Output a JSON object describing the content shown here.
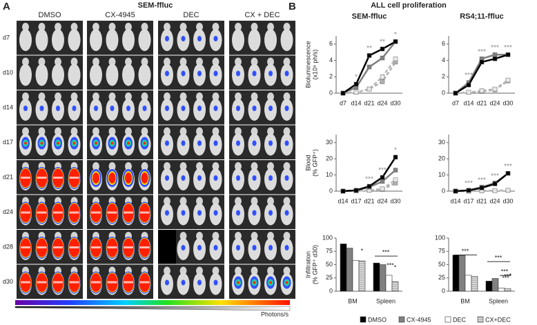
{
  "panel_a": {
    "label": "A",
    "title": "SEM-ffluc",
    "columns": [
      "DMSO",
      "CX-4945",
      "DEC",
      "CX + DEC"
    ],
    "rows": [
      "d7",
      "d10",
      "d14",
      "d17",
      "d21",
      "d24",
      "d28",
      "d30"
    ],
    "colorbar_label": "Photons/s"
  },
  "panel_b": {
    "label": "B",
    "title": "ALL cell proliferation",
    "columns": [
      "SEM-ffluc",
      "RS4;11-ffluc"
    ]
  },
  "legend": [
    {
      "name": "DMSO",
      "color": "#000000",
      "line_style": "solid"
    },
    {
      "name": "CX-4945",
      "color": "#808080",
      "line_style": "solid"
    },
    {
      "name": "DEC",
      "color": "#ffffff",
      "line_style": "dashed"
    },
    {
      "name": "CX+DEC",
      "color": "#b0b0b0",
      "line_style": "dashed"
    }
  ],
  "chart_data": [
    {
      "type": "line",
      "ylabel": [
        "Bioluminescence",
        "(x10⁹ ph/s)"
      ],
      "categories": [
        "d7",
        "d14",
        "d21",
        "d24",
        "d30"
      ],
      "ylim": [
        0,
        7
      ],
      "yticks": [
        0,
        2,
        4,
        6
      ],
      "series": [
        {
          "values": [
            0,
            1.1,
            4.6,
            5.4,
            6.3
          ]
        },
        {
          "values": [
            0,
            0.7,
            3.2,
            4.3,
            6.3
          ]
        },
        {
          "values": [
            0,
            0.1,
            0.5,
            2.0,
            4.2
          ]
        },
        {
          "values": [
            0,
            0.1,
            0.5,
            1.4,
            3.8
          ]
        }
      ],
      "annotations": [
        {
          "text": "*",
          "at": "d14"
        },
        {
          "text": "**",
          "at": "d21"
        },
        {
          "text": "**",
          "at": "d24"
        },
        {
          "text": "*",
          "at": "d30"
        }
      ]
    },
    {
      "type": "line",
      "categories": [
        "d7",
        "d14",
        "d21",
        "d24",
        "d30"
      ],
      "ylim": [
        0,
        7
      ],
      "yticks": [
        0,
        2,
        4,
        6
      ],
      "series": [
        {
          "values": [
            0,
            1.0,
            3.8,
            4.2,
            4.7
          ]
        },
        {
          "values": [
            0,
            1.3,
            4.2,
            4.7,
            4.7
          ]
        },
        {
          "values": [
            0,
            0.1,
            0.3,
            0.5,
            1.6
          ]
        },
        {
          "values": [
            0,
            0.1,
            0.2,
            0.4,
            1.5
          ]
        }
      ],
      "annotations": [
        {
          "text": "***",
          "at": "d14"
        },
        {
          "text": "***",
          "at": "d21"
        },
        {
          "text": "***",
          "at": "d24"
        },
        {
          "text": "***",
          "at": "d30"
        }
      ]
    },
    {
      "type": "line",
      "ylabel": [
        "Blood",
        "(% GFP⁺)"
      ],
      "categories": [
        "d14",
        "d17",
        "d21",
        "d24",
        "d30"
      ],
      "ylim": [
        0,
        35
      ],
      "yticks": [
        0,
        10,
        20,
        30
      ],
      "series": [
        {
          "values": [
            0,
            0.5,
            3,
            8.5,
            21
          ]
        },
        {
          "values": [
            0,
            0.5,
            2.5,
            6,
            13
          ]
        },
        {
          "values": [
            0,
            0.2,
            0.5,
            1.5,
            7
          ]
        },
        {
          "values": [
            0,
            0.2,
            0.5,
            1,
            5
          ]
        }
      ],
      "annotations": [
        {
          "text": "***",
          "at": "d21"
        },
        {
          "text": "***",
          "at": "d24"
        },
        {
          "text": "*",
          "at": "d30"
        }
      ]
    },
    {
      "type": "line",
      "categories": [
        "d14",
        "d17",
        "d21",
        "d24",
        "d30"
      ],
      "ylim": [
        0,
        35
      ],
      "yticks": [
        0,
        10,
        20,
        30
      ],
      "series": [
        {
          "values": [
            0,
            0.5,
            2,
            4.5,
            11
          ]
        },
        {
          "values": [
            0,
            0.5,
            2.5,
            5,
            11
          ]
        },
        {
          "values": [
            0,
            0,
            0.2,
            0.3,
            0.5
          ]
        },
        {
          "values": [
            0,
            0,
            0.2,
            0.3,
            0.5
          ]
        }
      ],
      "annotations": [
        {
          "text": "***",
          "at": "d17"
        },
        {
          "text": "***",
          "at": "d21"
        },
        {
          "text": "***",
          "at": "d24"
        },
        {
          "text": "***",
          "at": "d30"
        }
      ]
    },
    {
      "type": "bar",
      "ylabel": [
        "Infiltration",
        "(% GFP⁺ d30)"
      ],
      "categories": [
        "BM",
        "Spleen"
      ],
      "ylim": [
        0,
        100
      ],
      "yticks": [
        0,
        25,
        50,
        75,
        100
      ],
      "series": [
        {
          "values": [
            89,
            53
          ]
        },
        {
          "values": [
            81,
            50
          ]
        },
        {
          "values": [
            58,
            30
          ]
        },
        {
          "values": [
            57,
            18
          ]
        }
      ],
      "annotations": [
        "*",
        "***",
        "*",
        "***"
      ]
    },
    {
      "type": "bar",
      "categories": [
        "BM",
        "Spleen"
      ],
      "ylim": [
        0,
        100
      ],
      "yticks": [
        0,
        25,
        50,
        75,
        100
      ],
      "series": [
        {
          "values": [
            68,
            19
          ]
        },
        {
          "values": [
            67,
            24
          ]
        },
        {
          "values": [
            30,
            6
          ]
        },
        {
          "values": [
            28,
            5
          ]
        }
      ],
      "annotations": [
        "***",
        "***",
        "***",
        "***",
        "*",
        "***"
      ]
    }
  ]
}
